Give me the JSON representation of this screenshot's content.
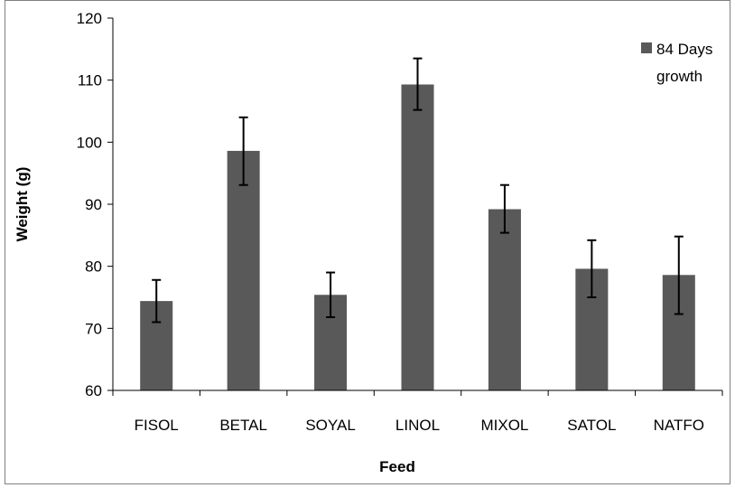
{
  "chart_data": {
    "type": "bar",
    "title": "",
    "xlabel": "Feed",
    "ylabel": "Weight (g)",
    "ylim": [
      60,
      120
    ],
    "yticks": [
      60,
      70,
      80,
      90,
      100,
      110,
      120
    ],
    "grid": false,
    "legend_position": "top-right",
    "categories": [
      "FISOL",
      "BETAL",
      "SOYAL",
      "LINOL",
      "MIXOL",
      "SATOL",
      "NATFO"
    ],
    "series": [
      {
        "name": "84 Days growth",
        "legend_lines": [
          "84 Days",
          "growth"
        ],
        "color": "#595959",
        "values": [
          74.4,
          98.6,
          75.4,
          109.3,
          89.2,
          79.6,
          78.6
        ],
        "error_low": [
          71.0,
          93.1,
          71.8,
          105.2,
          85.4,
          75.0,
          72.3
        ],
        "error_high": [
          77.8,
          104.0,
          79.0,
          113.5,
          93.1,
          84.2,
          84.8
        ]
      }
    ]
  },
  "colors": {
    "bar": "#595959",
    "axis": "#000000",
    "frame": "#808080"
  }
}
